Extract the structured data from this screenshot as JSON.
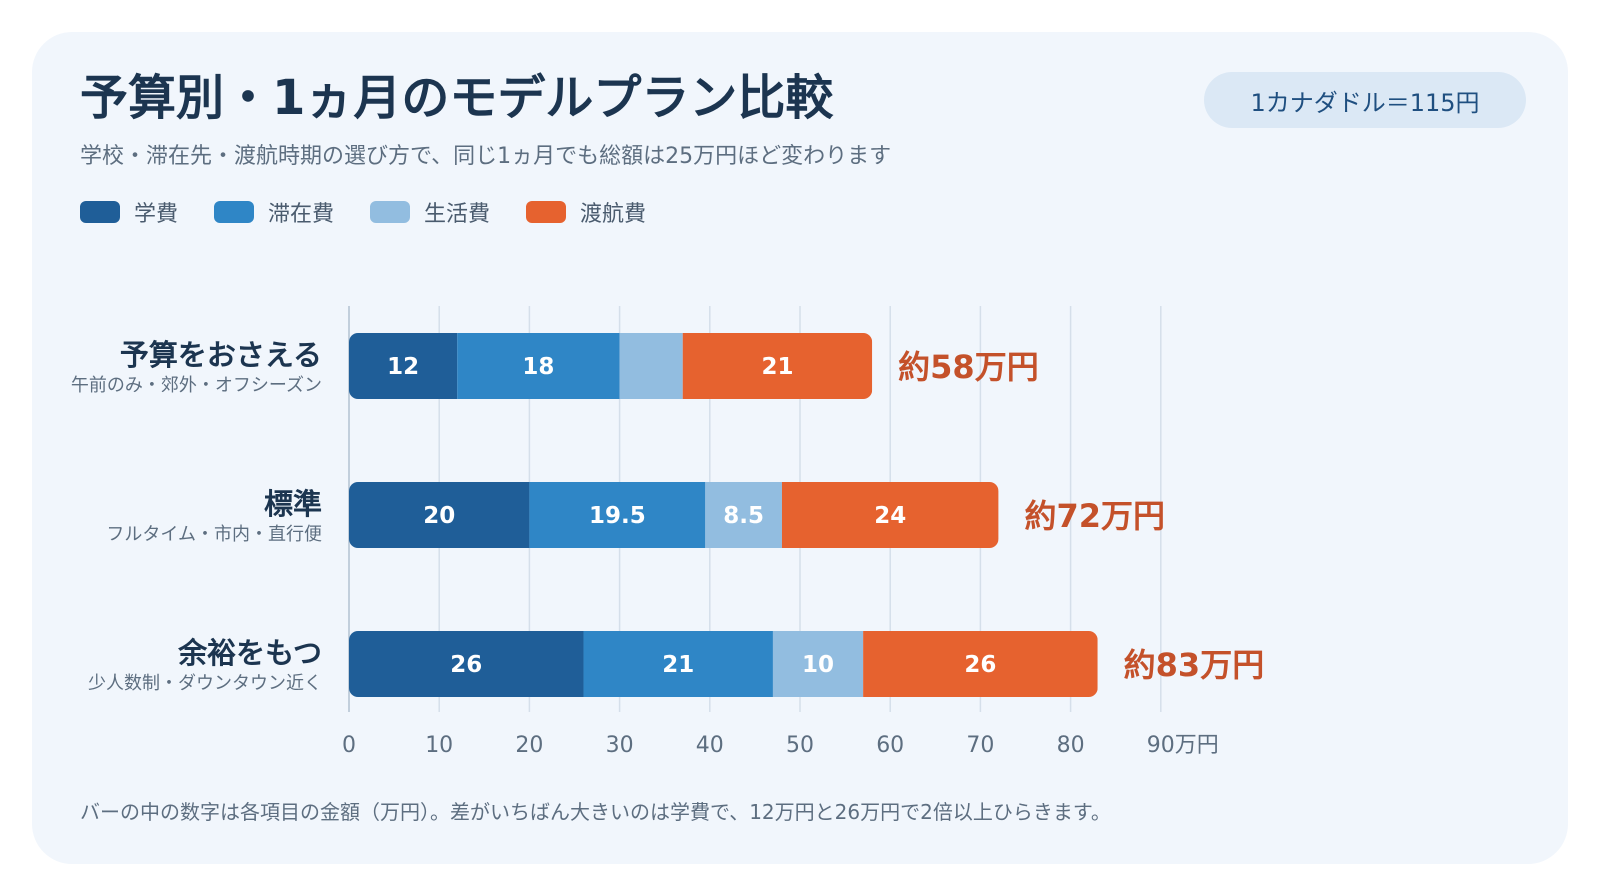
{
  "header": {
    "title": "予算別・1ヵ月のモデルプラン比較",
    "subtitle": "学校・滞在先・渡航時期の選び方で、同じ1ヵ月でも総額は25万円ほど変わります",
    "rate_badge": "1カナダドル＝115円"
  },
  "colors": {
    "tuition": "#1f5e98",
    "stay": "#2f86c6",
    "living": "#92bde0",
    "flight": "#e6622f",
    "total_label": "#c4512a",
    "grid": "#d5dfea",
    "axis_text": "#5d6e80"
  },
  "chart_data": {
    "type": "bar",
    "orientation": "horizontal",
    "stacked": true,
    "categories": [
      "予算をおさえる",
      "標準",
      "余裕をもつ"
    ],
    "category_subtitles": [
      "午前のみ・郊外・オフシーズン",
      "フルタイム・市内・直行便",
      "少人数制・ダウンタウン近く"
    ],
    "series": [
      {
        "name": "学費",
        "color": "#1f5e98",
        "values": [
          12,
          20,
          26
        ],
        "labels": [
          "12",
          "20",
          "26"
        ]
      },
      {
        "name": "滞在費",
        "color": "#2f86c6",
        "values": [
          18,
          19.5,
          21
        ],
        "labels": [
          "18",
          "19.5",
          "21"
        ]
      },
      {
        "name": "生活費",
        "color": "#92bde0",
        "values": [
          7,
          8.5,
          10
        ],
        "labels": [
          "",
          "8.5",
          "10"
        ]
      },
      {
        "name": "渡航費",
        "color": "#e6622f",
        "values": [
          21,
          24,
          26
        ],
        "labels": [
          "21",
          "24",
          "26"
        ]
      }
    ],
    "totals": [
      "約58万円",
      "約72万円",
      "約83万円"
    ],
    "xlim": [
      0,
      90
    ],
    "xticks": [
      "0",
      "10",
      "20",
      "30",
      "40",
      "50",
      "60",
      "70",
      "80",
      "90万円"
    ],
    "grid": true,
    "legend_position": "top-left"
  },
  "footer": {
    "note": "バーの中の数字は各項目の金額（万円）。差がいちばん大きいのは学費で、12万円と26万円で2倍以上ひらきます。"
  }
}
